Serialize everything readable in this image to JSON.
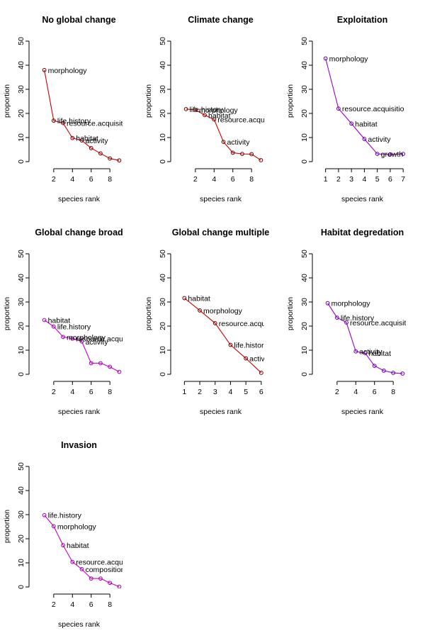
{
  "chart_data": [
    {
      "type": "line",
      "title": "No global change",
      "xlabel": "species rank",
      "ylabel": "proportion",
      "line_color": "#cc0000",
      "point_color": "#660000",
      "xlim": [
        0.5,
        9.2
      ],
      "ylim": [
        0,
        50
      ],
      "xticks": [
        2,
        4,
        6,
        8
      ],
      "yticks": [
        0,
        10,
        20,
        30,
        40,
        50
      ],
      "x": [
        1,
        2,
        3,
        4,
        5,
        6,
        7,
        8,
        9
      ],
      "y": [
        38,
        17,
        16,
        9.8,
        8.8,
        5.6,
        3.4,
        1.3,
        0.5
      ],
      "labels": [
        "morphology",
        "life.history",
        "resource.acquisit",
        "habitat",
        "activity",
        "",
        "",
        "",
        ""
      ]
    },
    {
      "type": "line",
      "title": "Climate change",
      "xlabel": "species rank",
      "ylabel": "proportion",
      "line_color": "#cc0000",
      "point_color": "#660000",
      "xlim": [
        0.5,
        9.2
      ],
      "ylim": [
        0,
        50
      ],
      "xticks": [
        2,
        4,
        6,
        8
      ],
      "yticks": [
        0,
        10,
        20,
        30,
        40,
        50
      ],
      "x": [
        1,
        2,
        3,
        4,
        5,
        6,
        7,
        8,
        9
      ],
      "y": [
        21.8,
        21.5,
        19.3,
        17.5,
        8.2,
        3.7,
        3.2,
        3.1,
        0.6
      ],
      "labels": [
        "life.history",
        "morphology",
        "habitat",
        "resource.acqui",
        "activity",
        "",
        "",
        "",
        ""
      ]
    },
    {
      "type": "line",
      "title": "Exploitation",
      "xlabel": "species rank",
      "ylabel": "proportion",
      "line_color": "#9900cc",
      "point_color": "#6600aa",
      "xlim": [
        0.8,
        7.1
      ],
      "ylim": [
        0,
        50
      ],
      "xticks": [
        1,
        2,
        3,
        4,
        5,
        6,
        7
      ],
      "yticks": [
        0,
        10,
        20,
        30,
        40,
        50
      ],
      "x": [
        1,
        2,
        3,
        4,
        5,
        6,
        7
      ],
      "y": [
        42.8,
        22,
        15.8,
        9.4,
        3.2,
        3,
        3.2
      ],
      "labels": [
        "morphology",
        "resource.acquisitio",
        "habitat",
        "activity",
        "growth",
        "",
        ""
      ]
    },
    {
      "type": "line",
      "title": "Global change broad",
      "xlabel": "species rank",
      "ylabel": "proportion",
      "line_color": "#cc00cc",
      "point_color": "#9900aa",
      "xlim": [
        0.5,
        9.2
      ],
      "ylim": [
        0,
        50
      ],
      "xticks": [
        2,
        4,
        6,
        8
      ],
      "yticks": [
        0,
        10,
        20,
        30,
        40,
        50
      ],
      "x": [
        1,
        2,
        3,
        4,
        5,
        6,
        7,
        8,
        9
      ],
      "y": [
        22.5,
        19.8,
        15.5,
        14.8,
        13.6,
        4.6,
        4.6,
        3.1,
        1
      ],
      "labels": [
        "habitat",
        "life.history",
        "morphology",
        "resource.acqu",
        "activity",
        "",
        "",
        "",
        ""
      ]
    },
    {
      "type": "line",
      "title": "Global change multiple",
      "xlabel": "species rank",
      "ylabel": "proportion",
      "line_color": "#cc0000",
      "point_color": "#660000",
      "xlim": [
        0.8,
        6.1
      ],
      "ylim": [
        0,
        50
      ],
      "xticks": [
        1,
        2,
        3,
        4,
        5,
        6
      ],
      "yticks": [
        0,
        10,
        20,
        30,
        40,
        50
      ],
      "x": [
        1,
        2,
        3,
        4,
        5,
        6
      ],
      "y": [
        31.6,
        26.5,
        21.2,
        12.2,
        6.6,
        0.6
      ],
      "labels": [
        "habitat",
        "morphology",
        "resource.acqu",
        "life.histor",
        "activ",
        ""
      ]
    },
    {
      "type": "line",
      "title": "Habitat degredation",
      "xlabel": "species rank",
      "ylabel": "proportion",
      "line_color": "#9900cc",
      "point_color": "#6600aa",
      "xlim": [
        0.5,
        9.2
      ],
      "ylim": [
        0,
        50
      ],
      "xticks": [
        2,
        4,
        6,
        8
      ],
      "yticks": [
        0,
        10,
        20,
        30,
        40,
        50
      ],
      "x": [
        1,
        2,
        3,
        4,
        5,
        6,
        7,
        8,
        9
      ],
      "y": [
        29.5,
        23.5,
        21.5,
        9.5,
        8.8,
        3.5,
        1.5,
        0.6,
        0.3
      ],
      "labels": [
        "morphology",
        "life.history",
        "resource.acquisit",
        "activity",
        "habitat",
        "",
        "",
        "",
        ""
      ]
    },
    {
      "type": "line",
      "title": "Invasion",
      "xlabel": "species rank",
      "ylabel": "proportion",
      "line_color": "#cc00cc",
      "point_color": "#9900aa",
      "xlim": [
        0.5,
        9.2
      ],
      "ylim": [
        0,
        50
      ],
      "xticks": [
        2,
        4,
        6,
        8
      ],
      "yticks": [
        0,
        10,
        20,
        30,
        40,
        50
      ],
      "x": [
        1,
        2,
        3,
        4,
        5,
        6,
        7,
        8,
        9
      ],
      "y": [
        29.8,
        25.2,
        17.3,
        10.4,
        7.4,
        3.5,
        3.5,
        1.7,
        0.1
      ],
      "labels": [
        "life.history",
        "morphology",
        "habitat",
        "resource.acqu",
        "composition",
        "",
        "",
        "",
        ""
      ]
    }
  ]
}
